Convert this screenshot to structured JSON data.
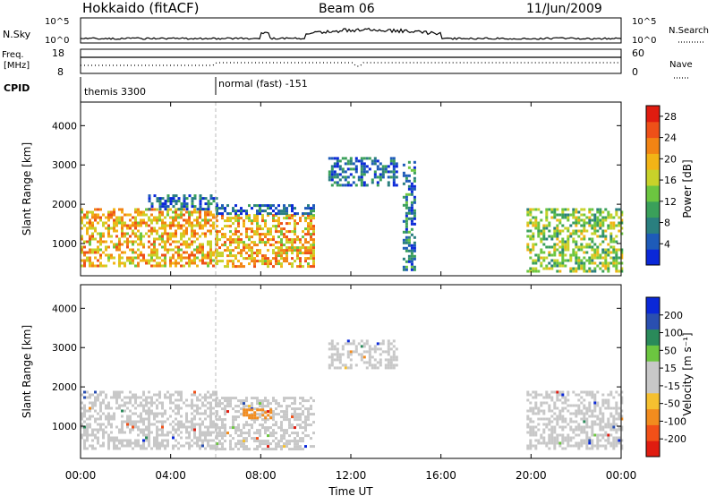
{
  "header": {
    "station": "Hokkaido (fitACF)",
    "beam": "Beam 06",
    "date": "11/Jun/2009"
  },
  "noise_panel": {
    "left_label": "N.Sky",
    "right_label": "N.Search",
    "left_ticks": [
      "10^5",
      "10^0"
    ],
    "right_ticks": [
      "10^5",
      "10^0"
    ]
  },
  "freq_panel": {
    "left_label_1": "Freq.",
    "left_label_2": "[MHz]",
    "right_label": "Nave",
    "left_ticks": [
      "18",
      "8"
    ],
    "right_ticks": [
      "60",
      "0"
    ]
  },
  "cpid_panel": {
    "label": "CPID",
    "modes": [
      {
        "name": "themis 3300",
        "start_hour": 0,
        "end_hour": 6
      },
      {
        "name": "normal (fast) -151",
        "start_hour": 6,
        "end_hour": 24
      }
    ]
  },
  "colors": {
    "power_scale": [
      "#0a28d8",
      "#1e5bb8",
      "#2a7f7f",
      "#3aa05a",
      "#6cc640",
      "#c8d22a",
      "#f2b416",
      "#f28414",
      "#ee5018",
      "#e01c10"
    ],
    "velocity_scale": [
      "#e01c10",
      "#f25018",
      "#f28c1e",
      "#f5c030",
      "#c8c8c8",
      "#c8c8c8",
      "#6cc640",
      "#2a8a5a",
      "#2a4fb0",
      "#0a28d8"
    ]
  },
  "chart_data": [
    {
      "type": "heatmap",
      "title": "",
      "xlabel": "Time UT",
      "ylabel": "Slant Range [km]",
      "xlim": [
        0,
        24
      ],
      "ylim": [
        180,
        4600
      ],
      "x_tick_labels": [
        "00:00",
        "04:00",
        "08:00",
        "12:00",
        "16:00",
        "20:00",
        "00:00"
      ],
      "x_tick_hours": [
        0,
        4,
        8,
        12,
        16,
        20,
        24
      ],
      "y_tick_labels": [
        "1000",
        "2000",
        "3000",
        "4000"
      ],
      "y_ticks": [
        1000,
        2000,
        3000,
        4000
      ],
      "colorbar": {
        "label": "Power [dB]",
        "tick_labels": [
          "4",
          "8",
          "12",
          "16",
          "20",
          "24",
          "28"
        ],
        "ticks": [
          4,
          8,
          12,
          16,
          20,
          24,
          28
        ],
        "range": [
          0,
          30
        ]
      },
      "echo_regions": [
        {
          "t": [
            0.0,
            6.0
          ],
          "r": [
            400,
            1900
          ],
          "level": 20
        },
        {
          "t": [
            3.0,
            6.0
          ],
          "r": [
            1900,
            2250
          ],
          "level": 6
        },
        {
          "t": [
            6.0,
            10.4
          ],
          "r": [
            400,
            1750
          ],
          "level": 20
        },
        {
          "t": [
            6.0,
            10.4
          ],
          "r": [
            1750,
            2000
          ],
          "level": 5
        },
        {
          "t": [
            11.0,
            14.0
          ],
          "r": [
            2500,
            3200
          ],
          "level": 6
        },
        {
          "t": [
            14.3,
            14.8
          ],
          "r": [
            300,
            3100
          ],
          "level": 7
        },
        {
          "t": [
            19.8,
            24.0
          ],
          "r": [
            300,
            1900
          ],
          "level": 14
        }
      ]
    },
    {
      "type": "heatmap",
      "title": "",
      "xlabel": "Time UT",
      "ylabel": "Slant Range [km]",
      "xlim": [
        0,
        24
      ],
      "ylim": [
        180,
        4600
      ],
      "x_tick_labels": [
        "00:00",
        "04:00",
        "08:00",
        "12:00",
        "16:00",
        "20:00",
        "00:00"
      ],
      "x_tick_hours": [
        0,
        4,
        8,
        12,
        16,
        20,
        24
      ],
      "y_tick_labels": [
        "1000",
        "2000",
        "3000",
        "4000"
      ],
      "y_ticks": [
        1000,
        2000,
        3000,
        4000
      ],
      "colorbar": {
        "label": "Velocity [m s⁻¹]",
        "tick_labels": [
          "200",
          "100",
          "50",
          "15",
          "-15",
          "-50",
          "-100",
          "-200"
        ],
        "ticks": [
          200,
          100,
          50,
          15,
          -15,
          -50,
          -100,
          -200
        ]
      },
      "echo_regions": [
        {
          "t": [
            0.0,
            6.0
          ],
          "r": [
            400,
            1900
          ],
          "velocity": 0
        },
        {
          "t": [
            6.0,
            10.4
          ],
          "r": [
            400,
            1750
          ],
          "velocity": 0
        },
        {
          "t": [
            7.2,
            8.4
          ],
          "r": [
            1200,
            1450
          ],
          "velocity": -60
        },
        {
          "t": [
            11.0,
            14.0
          ],
          "r": [
            2500,
            3200
          ],
          "velocity": 0
        },
        {
          "t": [
            19.8,
            24.0
          ],
          "r": [
            400,
            1900
          ],
          "velocity": 0
        }
      ]
    }
  ]
}
